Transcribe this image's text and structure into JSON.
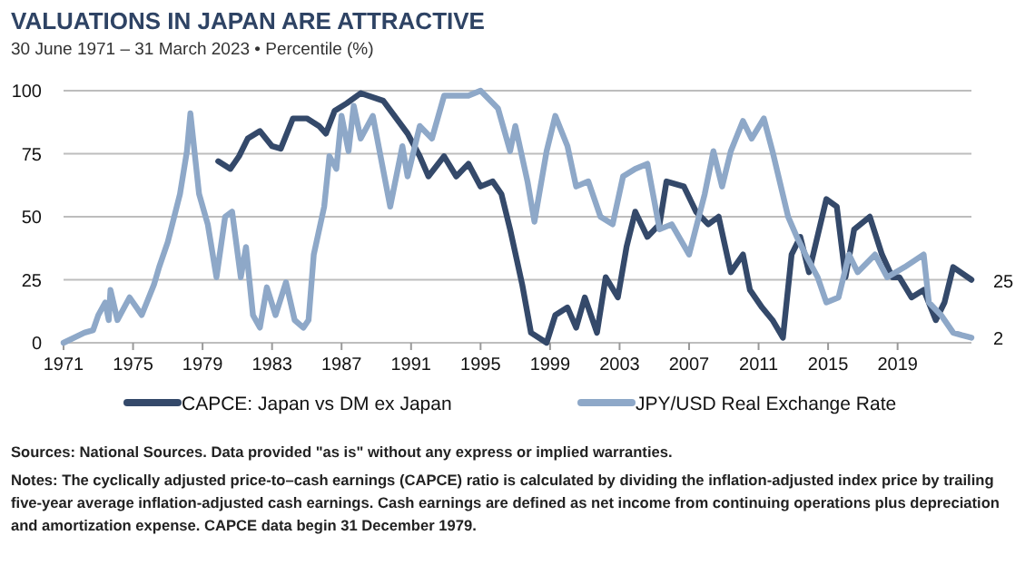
{
  "chart_data": {
    "type": "line",
    "title": "VALUATIONS IN JAPAN ARE ATTRACTIVE",
    "subtitle": "30 June 1971 – 31 March 2023 • Percentile (%)",
    "xlim": [
      1971,
      2023.25
    ],
    "xticks": [
      1971,
      1975,
      1979,
      1983,
      1987,
      1991,
      1995,
      1999,
      2003,
      2007,
      2011,
      2015,
      2019
    ],
    "ylim": [
      0,
      100
    ],
    "yticks": [
      0,
      25,
      50,
      75,
      100
    ],
    "grid": "y",
    "legend": "bottom",
    "line_style": "solid",
    "marker": "none",
    "series": [
      {
        "name": "CAPCE: Japan vs DM ex Japan",
        "color": "#34496a",
        "x": [
          1979.9,
          1980.6,
          1981.1,
          1981.6,
          1982.3,
          1983,
          1983.5,
          1984.2,
          1985,
          1985.7,
          1986.1,
          1986.6,
          1987.3,
          1988.1,
          1989.4,
          1990.8,
          1991.5,
          1992,
          1992.9,
          1993.6,
          1994.3,
          1995,
          1995.7,
          1996.2,
          1996.7,
          1997.4,
          1997.9,
          1998.8,
          1999.3,
          2000,
          2000.5,
          2001,
          2001.7,
          2002.2,
          2002.9,
          2003.4,
          2003.9,
          2004.6,
          2005.3,
          2005.7,
          2006.7,
          2007.4,
          2008.1,
          2008.7,
          2009.4,
          2010.1,
          2010.5,
          2011.2,
          2011.8,
          2012.4,
          2012.9,
          2013.4,
          2013.9,
          2014.9,
          2015.5,
          2016,
          2016.5,
          2017.4,
          2018.1,
          2018.7,
          2019.1,
          2019.8,
          2020.5,
          2021.2,
          2021.7,
          2022.2,
          2023.25
        ],
        "values": [
          72,
          69,
          74,
          81,
          84,
          78,
          77,
          89,
          89,
          86,
          83,
          92,
          95,
          99,
          96,
          83,
          74,
          66,
          74,
          66,
          71,
          62,
          64,
          59,
          45,
          23,
          4,
          0,
          11,
          14,
          6,
          18,
          4,
          26,
          18,
          38,
          52,
          42,
          47,
          64,
          62,
          52,
          47,
          50,
          28,
          35,
          21,
          14,
          9,
          2,
          35,
          42,
          28,
          57,
          54,
          26,
          45,
          50,
          35,
          26,
          26,
          18,
          21,
          9,
          16,
          30,
          25
        ]
      },
      {
        "name": "JPY/USD Real Exchange Rate",
        "color": "#8ea8c8",
        "x": [
          1971,
          1972.2,
          1972.7,
          1973,
          1973.4,
          1973.6,
          1973.7,
          1974.1,
          1974.8,
          1975.5,
          1976.2,
          1976.5,
          1977,
          1977.7,
          1978.1,
          1978.3,
          1978.8,
          1979.3,
          1979.8,
          1980.3,
          1980.7,
          1981.2,
          1981.5,
          1981.9,
          1982.3,
          1982.7,
          1983.2,
          1983.8,
          1984.3,
          1984.8,
          1985.1,
          1985.4,
          1986,
          1986.3,
          1986.7,
          1987,
          1987.4,
          1987.7,
          1988.1,
          1988.8,
          1989.8,
          1990.5,
          1990.8,
          1991.5,
          1992.2,
          1992.9,
          1994.3,
          1995,
          1996,
          1996.7,
          1997,
          1997.7,
          1998.1,
          1998.8,
          1999.3,
          2000,
          2000.5,
          2001.2,
          2001.9,
          2002.6,
          2003.2,
          2003.9,
          2004.6,
          2005.3,
          2006,
          2007,
          2007.9,
          2008.4,
          2008.9,
          2009.4,
          2010.1,
          2010.6,
          2011.3,
          2011.8,
          2012.7,
          2013.2,
          2013.7,
          2014.4,
          2014.9,
          2015.6,
          2016.2,
          2016.7,
          2017.7,
          2018.4,
          2019.4,
          2020.5,
          2020.8,
          2021.5,
          2022.2,
          2022.7,
          2023.25
        ],
        "values": [
          0,
          4,
          5,
          11,
          16,
          9,
          21,
          9,
          18,
          11,
          23,
          30,
          40,
          59,
          76,
          91,
          59,
          47,
          26,
          50,
          52,
          26,
          38,
          11,
          6,
          22,
          11,
          24,
          9,
          6,
          9,
          35,
          54,
          74,
          69,
          90,
          76,
          94,
          81,
          90,
          54,
          78,
          66,
          86,
          81,
          98,
          98,
          100,
          93,
          76,
          86,
          64,
          48,
          76,
          90,
          78,
          62,
          64,
          50,
          47,
          66,
          69,
          71,
          45,
          47,
          35,
          59,
          76,
          62,
          76,
          88,
          81,
          89,
          76,
          50,
          42,
          35,
          26,
          16,
          18,
          35,
          28,
          35,
          26,
          30,
          35,
          16,
          11,
          4,
          3,
          2
        ]
      }
    ],
    "annotations": [
      {
        "text": "25",
        "x": 2023.25,
        "y": 25
      },
      {
        "text": "2",
        "x": 2023.25,
        "y": 2
      },
      "Sources: National Sources. Data provided \"as is\" without any express or implied warranties.",
      "Notes: The cyclically adjusted price-to–cash earnings (CAPCE) ratio is calculated by dividing the inflation-adjusted index price by trailing five-year average inflation-adjusted cash earnings. Cash earnings are defined as net income from continuing operations plus depreciation and amortization expense. CAPCE data begin 31 December 1979."
    ]
  }
}
